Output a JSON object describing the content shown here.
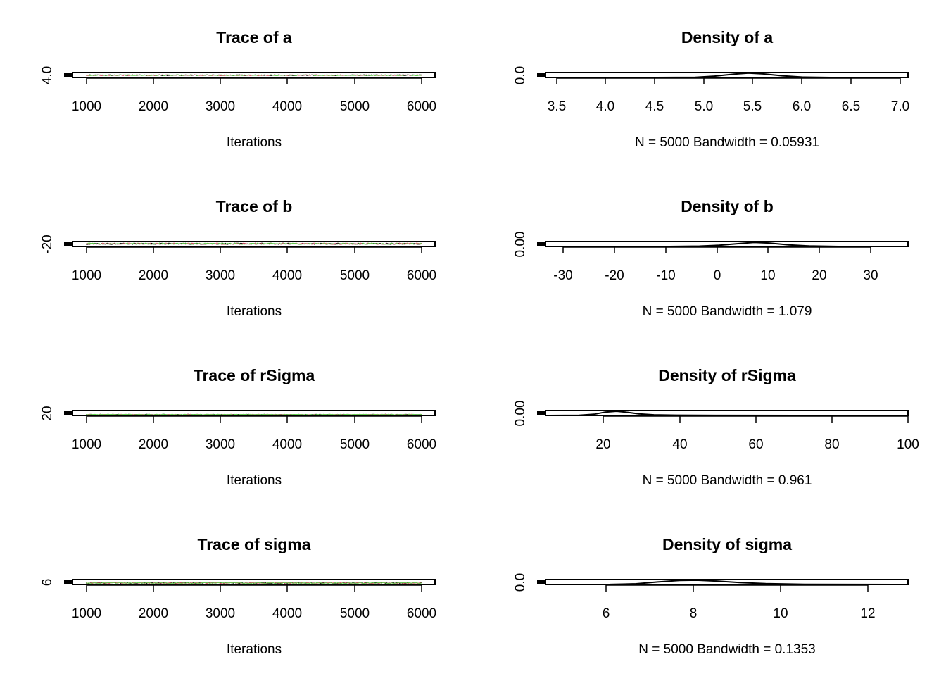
{
  "colors": {
    "background": "#ffffff",
    "axis": "#000000",
    "chains": [
      "#000000",
      "#df536b",
      "#61d04f"
    ]
  },
  "chart_data": [
    {
      "type": "line",
      "title": "Trace of a",
      "xlabel": "Iterations",
      "xticks": [
        "1000",
        "2000",
        "3000",
        "4000",
        "5000",
        "6000"
      ],
      "xlim": [
        800,
        6200
      ],
      "yticks": [
        "4.0"
      ],
      "ylim": [
        3.9,
        7.3
      ],
      "series": [
        {
          "color": "#000000",
          "x": [
            1001,
            6000
          ],
          "values_center": 5.45,
          "values_spread": 0.35
        },
        {
          "color": "#df536b",
          "x": [
            1001,
            6000
          ],
          "values_center": 5.45,
          "values_spread": 0.35
        },
        {
          "color": "#61d04f",
          "x": [
            1001,
            6000
          ],
          "values_center": 5.45,
          "values_spread": 0.35
        }
      ]
    },
    {
      "type": "line",
      "title": "Density of a",
      "xlabel": "N = 5000   Bandwidth = 0.05931",
      "xticks": [
        "3.5",
        "4.0",
        "4.5",
        "5.0",
        "5.5",
        "6.0",
        "6.5",
        "7.0"
      ],
      "xlim": [
        3.35,
        7.1
      ],
      "yticks": [
        "0.0"
      ],
      "ylim": [
        0,
        1.3
      ],
      "series": [
        {
          "x": [
            3.4,
            4.5,
            4.9,
            5.1,
            5.3,
            5.45,
            5.6,
            5.8,
            6.0,
            6.3,
            7.0
          ],
          "values": [
            0,
            0.0,
            0.05,
            0.35,
            0.9,
            1.15,
            0.95,
            0.45,
            0.12,
            0.0,
            0
          ]
        }
      ]
    },
    {
      "type": "line",
      "title": "Trace of b",
      "xlabel": "Iterations",
      "xticks": [
        "1000",
        "2000",
        "3000",
        "4000",
        "5000",
        "6000"
      ],
      "xlim": [
        800,
        6200
      ],
      "yticks": [
        "-20"
      ],
      "ylim": [
        -32,
        38
      ],
      "series": [
        {
          "color": "#000000",
          "x": [
            1001,
            6000
          ],
          "values_center": 7,
          "values_spread": 10
        },
        {
          "color": "#df536b",
          "x": [
            1001,
            6000
          ],
          "values_center": 7,
          "values_spread": 10
        },
        {
          "color": "#61d04f",
          "x": [
            1001,
            6000
          ],
          "values_center": 7,
          "values_spread": 10
        }
      ]
    },
    {
      "type": "line",
      "title": "Density of b",
      "xlabel": "N = 5000   Bandwidth = 1.079",
      "xticks": [
        "-30",
        "-20",
        "-10",
        "0",
        "10",
        "20",
        "30"
      ],
      "xlim": [
        -35,
        38
      ],
      "yticks": [
        "0.00"
      ],
      "ylim": [
        0,
        0.06
      ],
      "series": [
        {
          "x": [
            -34,
            -10,
            -4,
            0,
            4,
            7,
            10,
            14,
            18,
            24,
            35
          ],
          "values": [
            0,
            0.0,
            0.004,
            0.015,
            0.035,
            0.05,
            0.042,
            0.02,
            0.006,
            0.0,
            0
          ]
        }
      ]
    },
    {
      "type": "line",
      "title": "Trace of rSigma",
      "xlabel": "Iterations",
      "xticks": [
        "1000",
        "2000",
        "3000",
        "4000",
        "5000",
        "6000"
      ],
      "xlim": [
        800,
        6200
      ],
      "yticks": [
        "20"
      ],
      "ylim": [
        5,
        100
      ],
      "series": [
        {
          "color": "#000000",
          "x": [
            1001,
            6000
          ],
          "values_center": 22,
          "values_spread": 6
        },
        {
          "color": "#df536b",
          "x": [
            1001,
            6000
          ],
          "values_center": 22,
          "values_spread": 6
        },
        {
          "color": "#61d04f",
          "x": [
            1001,
            6000
          ],
          "values_center": 22,
          "values_spread": 6
        }
      ]
    },
    {
      "type": "line",
      "title": "Density of rSigma",
      "xlabel": "N = 5000   Bandwidth = 0.961",
      "xticks": [
        "20",
        "40",
        "60",
        "80",
        "100"
      ],
      "xlim": [
        3,
        100
      ],
      "yticks": [
        "0.00"
      ],
      "ylim": [
        0,
        0.08
      ],
      "series": [
        {
          "x": [
            4,
            12,
            16,
            19,
            22,
            25,
            28,
            32,
            38,
            50,
            70,
            98
          ],
          "values": [
            0,
            0.002,
            0.02,
            0.055,
            0.068,
            0.05,
            0.025,
            0.01,
            0.004,
            0.001,
            0.0,
            0
          ]
        }
      ]
    },
    {
      "type": "line",
      "title": "Trace of sigma",
      "xlabel": "Iterations",
      "xticks": [
        "1000",
        "2000",
        "3000",
        "4000",
        "5000",
        "6000"
      ],
      "xlim": [
        800,
        6200
      ],
      "yticks": [
        "6"
      ],
      "ylim": [
        5.6,
        13.5
      ],
      "series": [
        {
          "color": "#000000",
          "x": [
            1001,
            6000
          ],
          "values_center": 8,
          "values_spread": 1
        },
        {
          "color": "#df536b",
          "x": [
            1001,
            6000
          ],
          "values_center": 8,
          "values_spread": 1
        },
        {
          "color": "#61d04f",
          "x": [
            1001,
            6000
          ],
          "values_center": 8,
          "values_spread": 1
        }
      ]
    },
    {
      "type": "line",
      "title": "Density of sigma",
      "xlabel": "N = 5000   Bandwidth = 0.1353",
      "xticks": [
        "6",
        "8",
        "10",
        "12"
      ],
      "xlim": [
        4.5,
        12.9
      ],
      "yticks": [
        "0.0"
      ],
      "ylim": [
        0,
        0.55
      ],
      "series": [
        {
          "x": [
            4.8,
            6.0,
            6.6,
            7.1,
            7.6,
            8.0,
            8.5,
            9.0,
            9.6,
            10.5,
            12.6
          ],
          "values": [
            0,
            0.01,
            0.08,
            0.28,
            0.45,
            0.48,
            0.38,
            0.22,
            0.1,
            0.02,
            0
          ]
        }
      ]
    }
  ]
}
